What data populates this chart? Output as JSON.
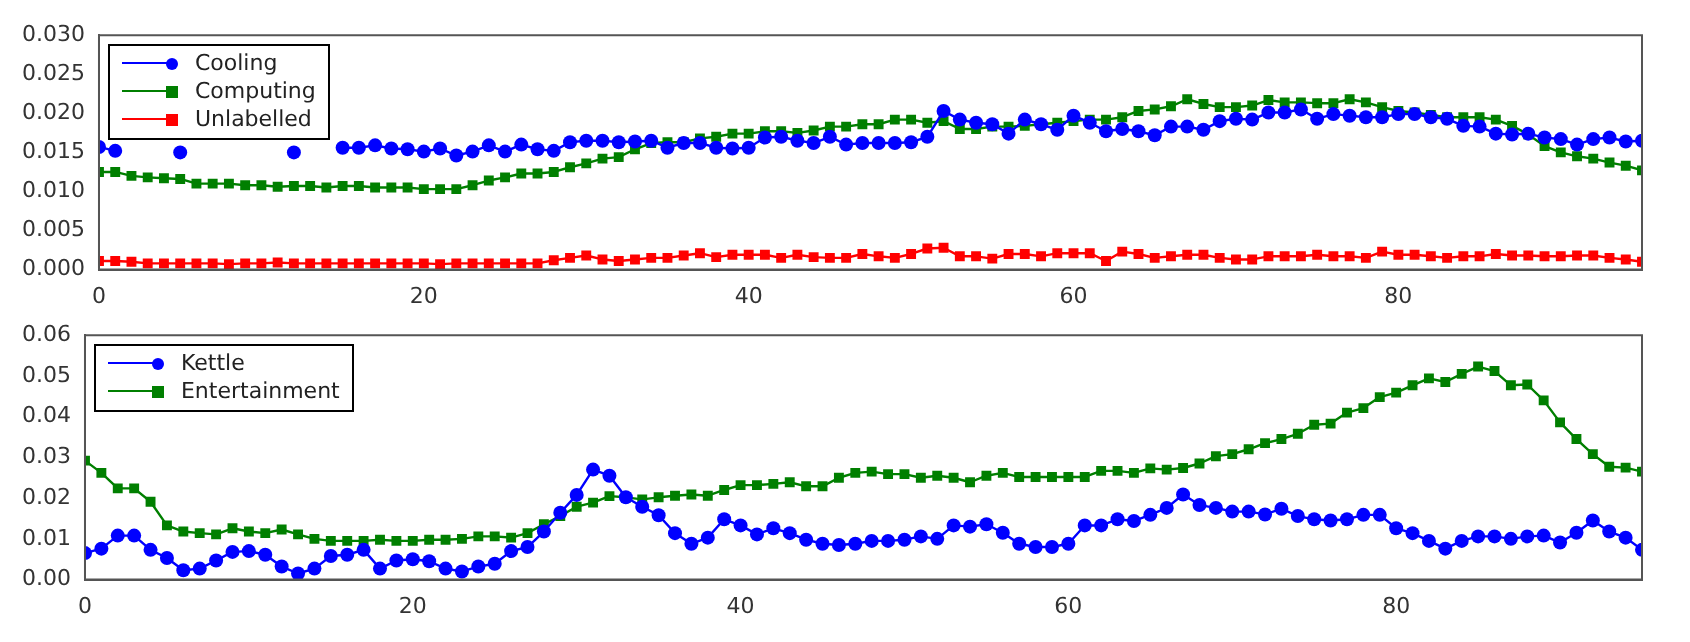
{
  "chart_data": [
    {
      "type": "line",
      "legend": "top left",
      "grid": false,
      "x": [
        0,
        1,
        2,
        3,
        4,
        5,
        6,
        7,
        8,
        9,
        10,
        11,
        12,
        13,
        14,
        15,
        16,
        17,
        18,
        19,
        20,
        21,
        22,
        23,
        24,
        25,
        26,
        27,
        28,
        29,
        30,
        31,
        32,
        33,
        34,
        35,
        36,
        37,
        38,
        39,
        40,
        41,
        42,
        43,
        44,
        45,
        46,
        47,
        48,
        49,
        50,
        51,
        52,
        53,
        54,
        55,
        56,
        57,
        58,
        59,
        60,
        61,
        62,
        63,
        64,
        65,
        66,
        67,
        68,
        69,
        70,
        71,
        72,
        73,
        74,
        75,
        76,
        77,
        78,
        79,
        80,
        81,
        82,
        83,
        84,
        85,
        86,
        87,
        88,
        89,
        90,
        91,
        92,
        93,
        94,
        95
      ],
      "xlim": [
        0,
        95
      ],
      "xticks": [
        0,
        20,
        40,
        60,
        80
      ],
      "ylim": [
        0,
        0.03
      ],
      "yticks": [
        {
          "value": 0,
          "label": "0.000"
        },
        {
          "value": 0.005,
          "label": "0.005"
        },
        {
          "value": 0.01,
          "label": "0.010"
        },
        {
          "value": 0.015,
          "label": "0.015"
        },
        {
          "value": 0.02,
          "label": "0.020"
        },
        {
          "value": 0.025,
          "label": "0.025"
        },
        {
          "value": 0.03,
          "label": "0.030"
        }
      ],
      "series": [
        {
          "name": "Cooling",
          "color": "#0000ff",
          "marker": "circle",
          "values": [
            0.0157,
            0.0152,
            null,
            null,
            null,
            0.015,
            null,
            null,
            null,
            null,
            null,
            null,
            0.015,
            null,
            null,
            0.0156,
            0.0156,
            0.0159,
            0.0155,
            0.0154,
            0.0151,
            0.0155,
            0.0146,
            0.0151,
            0.0159,
            0.0151,
            0.016,
            0.0154,
            0.0152,
            0.0163,
            0.0165,
            0.0165,
            0.0163,
            0.0164,
            0.0165,
            0.0156,
            0.0162,
            0.0162,
            0.0156,
            0.0155,
            0.0156,
            0.0169,
            0.017,
            0.0165,
            0.0162,
            0.017,
            0.016,
            0.0162,
            0.0162,
            0.0162,
            0.0163,
            0.017,
            0.0203,
            0.0192,
            0.0188,
            0.0186,
            0.0174,
            0.0192,
            0.0186,
            0.0179,
            0.0197,
            0.0188,
            0.0177,
            0.018,
            0.0177,
            0.0172,
            0.0183,
            0.0183,
            0.0179,
            0.019,
            0.0193,
            0.0192,
            0.0201,
            0.0201,
            0.0205,
            0.0193,
            0.0199,
            0.0197,
            0.0195,
            0.0195,
            0.0199,
            0.0199,
            0.0195,
            0.0193,
            0.0184,
            0.0183,
            0.0174,
            0.0173,
            0.0174,
            0.0169,
            0.0167,
            0.016,
            0.0167,
            0.0169,
            0.0164,
            0.0165
          ]
        },
        {
          "name": "Computing",
          "color": "#007f00",
          "marker": "square",
          "values": [
            0.0125,
            0.0125,
            0.012,
            0.0118,
            0.0117,
            0.0116,
            0.011,
            0.011,
            0.011,
            0.0108,
            0.0108,
            0.0106,
            0.0107,
            0.0107,
            0.0105,
            0.0107,
            0.0107,
            0.0105,
            0.0105,
            0.0105,
            0.0103,
            0.0103,
            0.0103,
            0.0108,
            0.0114,
            0.0118,
            0.0123,
            0.0123,
            0.0125,
            0.0131,
            0.0136,
            0.0142,
            0.0144,
            0.0154,
            0.0162,
            0.0163,
            0.0163,
            0.0168,
            0.017,
            0.0174,
            0.0174,
            0.0177,
            0.0177,
            0.0175,
            0.0178,
            0.0183,
            0.0183,
            0.0186,
            0.0186,
            0.0192,
            0.0192,
            0.0188,
            0.019,
            0.018,
            0.018,
            0.0183,
            0.0183,
            0.0184,
            0.0186,
            0.0188,
            0.019,
            0.0192,
            0.0192,
            0.0195,
            0.0203,
            0.0205,
            0.0209,
            0.0218,
            0.0212,
            0.0208,
            0.0208,
            0.021,
            0.0217,
            0.0214,
            0.0214,
            0.0213,
            0.0213,
            0.0218,
            0.0214,
            0.0208,
            0.0203,
            0.0201,
            0.0198,
            0.0195,
            0.0195,
            0.0195,
            0.0192,
            0.0184,
            0.0173,
            0.0158,
            0.015,
            0.0145,
            0.0142,
            0.0137,
            0.0133,
            0.0127
          ]
        },
        {
          "name": "Unlabelled",
          "color": "#ff0000",
          "marker": "square",
          "values": [
            0.0011,
            0.0011,
            0.001,
            0.0008,
            0.0008,
            0.0008,
            0.0008,
            0.0008,
            0.0007,
            0.0008,
            0.0008,
            0.0009,
            0.0008,
            0.0008,
            0.0008,
            0.0008,
            0.0008,
            0.0008,
            0.0008,
            0.0008,
            0.0008,
            0.0007,
            0.0008,
            0.0008,
            0.0008,
            0.0008,
            0.0008,
            0.0008,
            0.0012,
            0.0015,
            0.0018,
            0.0013,
            0.0011,
            0.0013,
            0.0015,
            0.0015,
            0.0018,
            0.0021,
            0.0016,
            0.0019,
            0.0019,
            0.0019,
            0.0015,
            0.0019,
            0.0016,
            0.0015,
            0.0015,
            0.002,
            0.0017,
            0.0015,
            0.002,
            0.0027,
            0.0028,
            0.0017,
            0.0017,
            0.0014,
            0.002,
            0.002,
            0.0017,
            0.0021,
            0.0021,
            0.0021,
            0.0011,
            0.0023,
            0.002,
            0.0015,
            0.0017,
            0.0019,
            0.0019,
            0.0015,
            0.0013,
            0.0013,
            0.0017,
            0.0017,
            0.0017,
            0.0019,
            0.0017,
            0.0017,
            0.0015,
            0.0023,
            0.0019,
            0.0019,
            0.0017,
            0.0015,
            0.0017,
            0.0017,
            0.002,
            0.0018,
            0.0018,
            0.0017,
            0.0017,
            0.0018,
            0.0018,
            0.0015,
            0.0013,
            0.001
          ]
        }
      ]
    },
    {
      "type": "line",
      "legend": "top left",
      "grid": false,
      "x": [
        0,
        1,
        2,
        3,
        4,
        5,
        6,
        7,
        8,
        9,
        10,
        11,
        12,
        13,
        14,
        15,
        16,
        17,
        18,
        19,
        20,
        21,
        22,
        23,
        24,
        25,
        26,
        27,
        28,
        29,
        30,
        31,
        32,
        33,
        34,
        35,
        36,
        37,
        38,
        39,
        40,
        41,
        42,
        43,
        44,
        45,
        46,
        47,
        48,
        49,
        50,
        51,
        52,
        53,
        54,
        55,
        56,
        57,
        58,
        59,
        60,
        61,
        62,
        63,
        64,
        65,
        66,
        67,
        68,
        69,
        70,
        71,
        72,
        73,
        74,
        75,
        76,
        77,
        78,
        79,
        80,
        81,
        82,
        83,
        84,
        85,
        86,
        87,
        88,
        89,
        90,
        91,
        92,
        93,
        94,
        95
      ],
      "xlim": [
        0,
        95
      ],
      "xticks": [
        0,
        20,
        40,
        60,
        80
      ],
      "ylim": [
        0,
        0.06
      ],
      "yticks": [
        {
          "value": 0,
          "label": "0.00"
        },
        {
          "value": 0.01,
          "label": "0.01"
        },
        {
          "value": 0.02,
          "label": "0.02"
        },
        {
          "value": 0.03,
          "label": "0.03"
        },
        {
          "value": 0.04,
          "label": "0.04"
        },
        {
          "value": 0.05,
          "label": "0.05"
        },
        {
          "value": 0.06,
          "label": "0.06"
        }
      ],
      "series": [
        {
          "name": "Kettle",
          "color": "#0000ff",
          "marker": "circle",
          "values": [
            0.0065,
            0.0076,
            0.0108,
            0.0108,
            0.0073,
            0.0053,
            0.0023,
            0.0027,
            0.0047,
            0.0068,
            0.007,
            0.0061,
            0.0032,
            0.0015,
            0.0027,
            0.0058,
            0.0061,
            0.0073,
            0.0027,
            0.0047,
            0.005,
            0.0045,
            0.0027,
            0.002,
            0.0032,
            0.0039,
            0.007,
            0.008,
            0.0118,
            0.0164,
            0.0208,
            0.027,
            0.0255,
            0.0202,
            0.0179,
            0.0158,
            0.0114,
            0.0088,
            0.0103,
            0.0148,
            0.0133,
            0.0111,
            0.0126,
            0.0114,
            0.0098,
            0.0088,
            0.0085,
            0.0088,
            0.0095,
            0.0095,
            0.0098,
            0.0106,
            0.01,
            0.0133,
            0.013,
            0.0136,
            0.0115,
            0.0088,
            0.008,
            0.008,
            0.0088,
            0.0133,
            0.0133,
            0.0148,
            0.0144,
            0.0159,
            0.0176,
            0.0209,
            0.0183,
            0.0176,
            0.0167,
            0.0167,
            0.016,
            0.0174,
            0.0156,
            0.0148,
            0.0145,
            0.0148,
            0.0159,
            0.0159,
            0.0126,
            0.0114,
            0.0095,
            0.0076,
            0.0095,
            0.0106,
            0.0106,
            0.01,
            0.0106,
            0.0108,
            0.0091,
            0.0115,
            0.0145,
            0.0118,
            0.0103,
            0.0073
          ]
        },
        {
          "name": "Entertainment",
          "color": "#007f00",
          "marker": "square",
          "values": [
            0.0292,
            0.0262,
            0.0224,
            0.0224,
            0.0191,
            0.0133,
            0.0118,
            0.0114,
            0.0111,
            0.0126,
            0.0118,
            0.0114,
            0.0123,
            0.0111,
            0.01,
            0.0095,
            0.0095,
            0.0095,
            0.0098,
            0.0095,
            0.0095,
            0.0098,
            0.0098,
            0.01,
            0.0106,
            0.0106,
            0.0103,
            0.0114,
            0.0136,
            0.0156,
            0.0179,
            0.0189,
            0.0205,
            0.0202,
            0.0197,
            0.0202,
            0.0206,
            0.0209,
            0.0206,
            0.022,
            0.0232,
            0.0232,
            0.0235,
            0.0239,
            0.0229,
            0.0229,
            0.025,
            0.0262,
            0.0265,
            0.0259,
            0.0259,
            0.025,
            0.0255,
            0.025,
            0.0239,
            0.0255,
            0.0262,
            0.0252,
            0.0252,
            0.0252,
            0.0252,
            0.0252,
            0.0267,
            0.0267,
            0.0262,
            0.0273,
            0.027,
            0.0274,
            0.0285,
            0.0303,
            0.0308,
            0.032,
            0.0335,
            0.0345,
            0.0358,
            0.038,
            0.0383,
            0.041,
            0.0421,
            0.0448,
            0.0459,
            0.0477,
            0.0494,
            0.0485,
            0.0505,
            0.0523,
            0.0512,
            0.0477,
            0.0479,
            0.044,
            0.0386,
            0.0345,
            0.0308,
            0.0277,
            0.0275,
            0.0265
          ]
        }
      ]
    }
  ]
}
